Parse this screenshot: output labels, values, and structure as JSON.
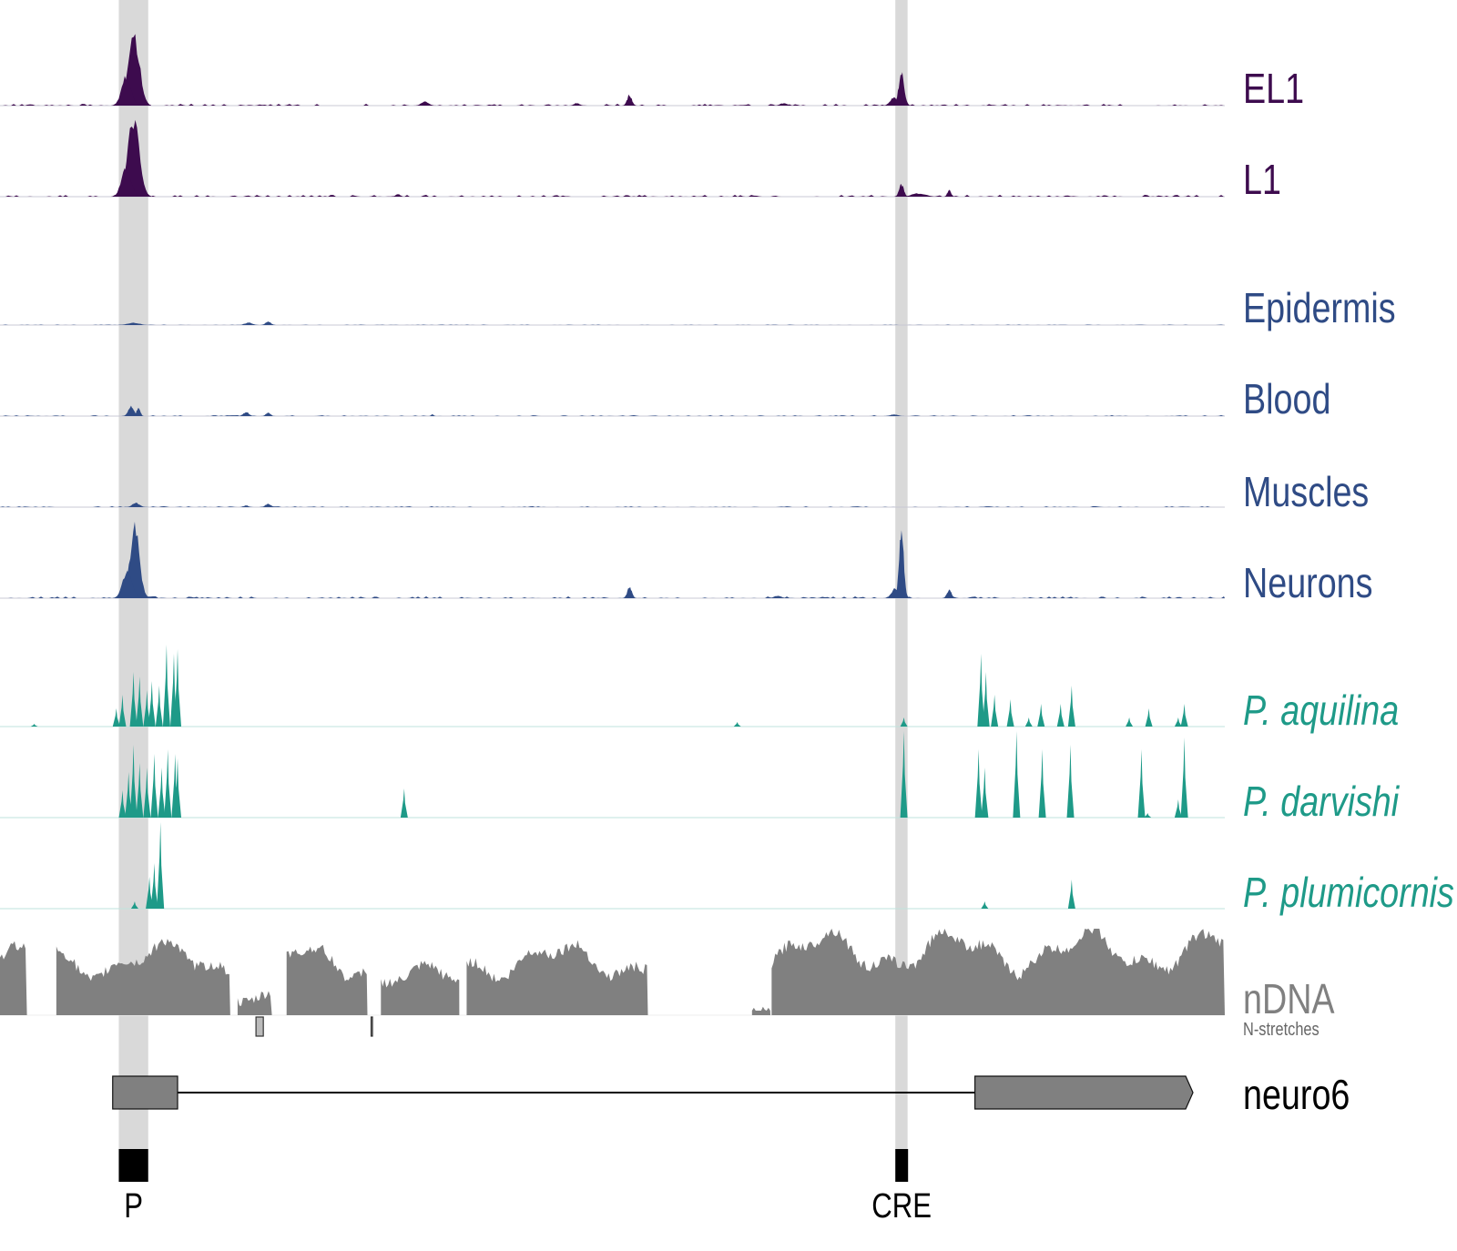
{
  "chart_data": {
    "type": "area",
    "title": "",
    "x_units": "percent of displayed locus",
    "xlim": [
      0,
      100
    ],
    "highlights": [
      {
        "name": "P",
        "start": 9.7,
        "end": 12.1
      },
      {
        "name": "CRE",
        "start": 73.1,
        "end": 74.1
      }
    ],
    "tracks": [
      {
        "label": "EL1",
        "color": "#3d0b4e",
        "italic": false,
        "style": "peak",
        "noise": 0.02,
        "peaks": [
          [
            10.9,
            1.2,
            0.92
          ],
          [
            10.3,
            1.0,
            0.35
          ],
          [
            73.6,
            0.6,
            0.4
          ],
          [
            73.0,
            0.8,
            0.1
          ],
          [
            51.4,
            0.5,
            0.13
          ],
          [
            34.7,
            0.8,
            0.05
          ],
          [
            47.1,
            0.6,
            0.03
          ],
          [
            64.0,
            0.8,
            0.03
          ]
        ]
      },
      {
        "label": "L1",
        "color": "#3d0b4e",
        "italic": false,
        "style": "peak",
        "noise": 0.02,
        "peaks": [
          [
            10.9,
            1.2,
            0.95
          ],
          [
            10.3,
            1.0,
            0.35
          ],
          [
            73.6,
            0.5,
            0.15
          ],
          [
            75.0,
            1.5,
            0.04
          ],
          [
            77.5,
            0.4,
            0.08
          ],
          [
            32.5,
            0.5,
            0.03
          ]
        ]
      },
      {
        "label": "Epidermis",
        "color": "#2f4b85",
        "italic": false,
        "style": "peak",
        "noise": 0.005,
        "peaks": [
          [
            10.9,
            1.2,
            0.03
          ],
          [
            20.3,
            0.8,
            0.03
          ],
          [
            21.9,
            0.6,
            0.04
          ]
        ]
      },
      {
        "label": "Blood",
        "color": "#2f4b85",
        "italic": false,
        "style": "peak",
        "noise": 0.01,
        "peaks": [
          [
            10.7,
            0.6,
            0.12
          ],
          [
            11.3,
            0.4,
            0.1
          ],
          [
            20.1,
            0.6,
            0.05
          ],
          [
            21.9,
            0.5,
            0.04
          ],
          [
            35.3,
            0.3,
            0.02
          ],
          [
            73.0,
            0.8,
            0.02
          ]
        ]
      },
      {
        "label": "Muscles",
        "color": "#2f4b85",
        "italic": false,
        "style": "peak",
        "noise": 0.01,
        "peaks": [
          [
            11.1,
            0.8,
            0.05
          ],
          [
            21.9,
            0.6,
            0.04
          ],
          [
            20.1,
            0.5,
            0.02
          ]
        ]
      },
      {
        "label": "Neurons",
        "color": "#2f4b85",
        "italic": false,
        "style": "peak",
        "noise": 0.02,
        "peaks": [
          [
            11.0,
            1.0,
            0.9
          ],
          [
            10.4,
            1.0,
            0.35
          ],
          [
            73.6,
            0.5,
            0.8
          ],
          [
            73.1,
            0.8,
            0.12
          ],
          [
            51.4,
            0.5,
            0.13
          ],
          [
            77.5,
            0.5,
            0.1
          ],
          [
            63.5,
            0.8,
            0.03
          ]
        ]
      },
      {
        "label": "P. aquilina",
        "color": "#1e9a88",
        "italic": true,
        "style": "spike",
        "noise": 0,
        "peaks": [
          [
            2.8,
            0.03
          ],
          [
            9.5,
            0.2
          ],
          [
            10.0,
            0.35
          ],
          [
            10.9,
            0.6
          ],
          [
            11.4,
            0.55
          ],
          [
            12.0,
            0.4
          ],
          [
            12.4,
            0.5
          ],
          [
            13.0,
            0.45
          ],
          [
            13.6,
            0.9
          ],
          [
            14.2,
            0.8
          ],
          [
            14.5,
            0.85
          ],
          [
            60.2,
            0.05
          ],
          [
            73.8,
            0.1
          ],
          [
            80.1,
            0.8
          ],
          [
            80.5,
            0.6
          ],
          [
            81.2,
            0.35
          ],
          [
            82.5,
            0.3
          ],
          [
            84.0,
            0.1
          ],
          [
            85.0,
            0.25
          ],
          [
            86.6,
            0.25
          ],
          [
            87.5,
            0.45
          ],
          [
            92.2,
            0.1
          ],
          [
            93.8,
            0.2
          ],
          [
            96.2,
            0.1
          ],
          [
            96.7,
            0.25
          ]
        ]
      },
      {
        "label": "P. darvishi",
        "color": "#1e9a88",
        "italic": true,
        "style": "spike",
        "noise": 0,
        "peaks": [
          [
            10.0,
            0.3
          ],
          [
            10.5,
            0.5
          ],
          [
            10.9,
            0.8
          ],
          [
            11.4,
            0.6
          ],
          [
            12.0,
            0.55
          ],
          [
            12.6,
            0.7
          ],
          [
            13.2,
            0.55
          ],
          [
            13.7,
            0.75
          ],
          [
            14.3,
            0.7
          ],
          [
            14.5,
            0.65
          ],
          [
            33.0,
            0.32
          ],
          [
            73.8,
            0.95
          ],
          [
            79.9,
            0.75
          ],
          [
            80.4,
            0.55
          ],
          [
            83.0,
            0.95
          ],
          [
            85.1,
            0.75
          ],
          [
            87.4,
            0.8
          ],
          [
            93.2,
            0.75
          ],
          [
            93.7,
            0.05
          ],
          [
            96.2,
            0.2
          ],
          [
            96.7,
            0.88
          ]
        ]
      },
      {
        "label": "P. plumicornis",
        "color": "#1e9a88",
        "italic": true,
        "style": "spike",
        "noise": 0,
        "peaks": [
          [
            11.0,
            0.08
          ],
          [
            12.2,
            0.35
          ],
          [
            12.6,
            0.5
          ],
          [
            13.1,
            0.95
          ],
          [
            80.4,
            0.08
          ],
          [
            87.5,
            0.32
          ]
        ]
      },
      {
        "label": "nDNA",
        "sublabel": "N-stretches",
        "color": "#808080",
        "italic": false,
        "style": "coverage",
        "segments": [
          [
            0,
            2.2,
            0.6
          ],
          [
            4.6,
            18.8,
            0.6
          ],
          [
            19.4,
            22.2,
            0.2
          ],
          [
            23.4,
            30.0,
            0.6
          ],
          [
            31.1,
            37.5,
            0.4
          ],
          [
            38.1,
            52.9,
            0.6
          ],
          [
            61.4,
            62.9,
            0.05
          ],
          [
            63.0,
            100,
            0.7
          ]
        ],
        "n_stretches": [
          [
            20.9,
            21.5
          ],
          [
            30.3,
            30.4
          ]
        ]
      }
    ],
    "gene": {
      "name": "neuro6",
      "exons": [
        [
          9.2,
          14.5
        ],
        [
          79.6,
          97.4
        ]
      ],
      "strand": "+"
    },
    "regions": [
      {
        "label": "P",
        "start": 9.7,
        "end": 12.1
      },
      {
        "label": "CRE",
        "start": 73.1,
        "end": 74.1
      }
    ]
  }
}
